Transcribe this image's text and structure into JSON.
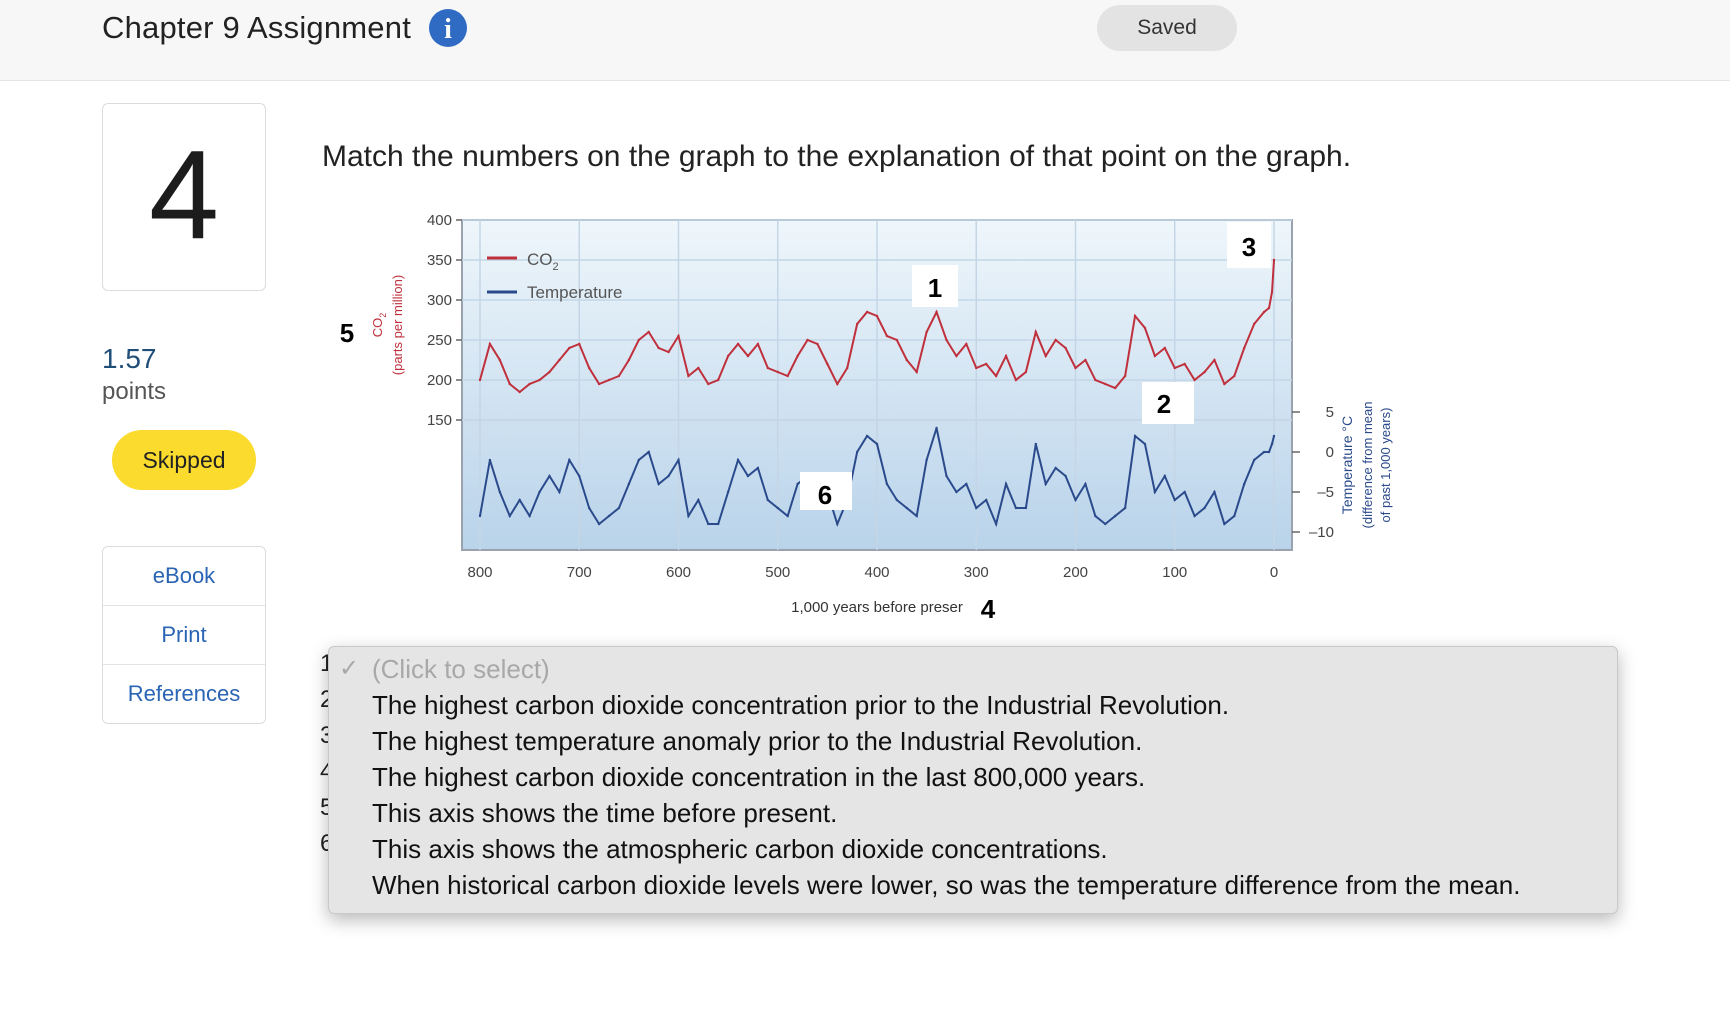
{
  "header": {
    "title": "Chapter 9 Assignment",
    "saved_label": "Saved",
    "info_glyph": "i"
  },
  "question": {
    "number": "4",
    "points_value": "1.57",
    "points_label": "points",
    "status": "Skipped",
    "prompt": "Match the numbers on the graph to the explanation of that point on the graph."
  },
  "sidebar": {
    "links": [
      "eBook",
      "Print",
      "References"
    ]
  },
  "chart_data": {
    "type": "line",
    "xlabel": "1,000 years before preser",
    "x_ticks": [
      "800",
      "700",
      "600",
      "500",
      "400",
      "300",
      "200",
      "100",
      "0"
    ],
    "xlim": [
      800,
      0
    ],
    "y_left_ticks": [
      "400",
      "350",
      "300",
      "250",
      "200",
      "150"
    ],
    "ylim_left": [
      150,
      400
    ],
    "y_left_label_1": "CO",
    "y_left_label_sub": "2",
    "y_left_label_2": "(parts per million)",
    "y_right_ticks": [
      "5",
      "0",
      "–5",
      "–10"
    ],
    "ylim_right": [
      -10,
      5
    ],
    "y_right_label_1": "Temperature °C",
    "y_right_label_2": "(difference from mean",
    "y_right_label_3": "of past 1,000 years)",
    "legend_placement": "top-left",
    "series": [
      {
        "name_main": "CO",
        "name_sub": "2",
        "color": "#c0303c",
        "x": [
          800,
          790,
          780,
          770,
          760,
          750,
          740,
          730,
          720,
          710,
          700,
          690,
          680,
          670,
          660,
          650,
          640,
          630,
          620,
          610,
          600,
          590,
          580,
          570,
          560,
          550,
          540,
          530,
          520,
          510,
          500,
          490,
          480,
          470,
          460,
          450,
          440,
          430,
          420,
          410,
          400,
          390,
          380,
          370,
          360,
          350,
          340,
          330,
          320,
          310,
          300,
          290,
          280,
          270,
          260,
          250,
          240,
          230,
          220,
          210,
          200,
          190,
          180,
          170,
          160,
          150,
          140,
          130,
          120,
          110,
          100,
          90,
          80,
          70,
          60,
          50,
          40,
          30,
          20,
          10,
          5,
          2,
          0
        ],
        "values": [
          200,
          245,
          225,
          195,
          185,
          195,
          200,
          210,
          225,
          240,
          245,
          215,
          195,
          200,
          205,
          225,
          250,
          260,
          240,
          235,
          255,
          205,
          215,
          195,
          200,
          230,
          245,
          230,
          245,
          215,
          210,
          205,
          230,
          250,
          245,
          220,
          195,
          215,
          270,
          285,
          280,
          255,
          250,
          225,
          210,
          260,
          285,
          250,
          230,
          245,
          215,
          220,
          205,
          230,
          200,
          210,
          260,
          230,
          250,
          240,
          215,
          225,
          200,
          195,
          190,
          205,
          280,
          265,
          230,
          240,
          215,
          220,
          200,
          210,
          225,
          195,
          205,
          240,
          270,
          285,
          290,
          310,
          350
        ]
      },
      {
        "name": "Temperature",
        "color": "#2a4a8c",
        "x": [
          800,
          790,
          780,
          770,
          760,
          750,
          740,
          730,
          720,
          710,
          700,
          690,
          680,
          670,
          660,
          650,
          640,
          630,
          620,
          610,
          600,
          590,
          580,
          570,
          560,
          550,
          540,
          530,
          520,
          510,
          500,
          490,
          480,
          470,
          460,
          450,
          440,
          430,
          420,
          410,
          400,
          390,
          380,
          370,
          360,
          350,
          340,
          330,
          320,
          310,
          300,
          290,
          280,
          270,
          260,
          250,
          240,
          230,
          220,
          210,
          200,
          190,
          180,
          170,
          160,
          150,
          140,
          130,
          120,
          110,
          100,
          90,
          80,
          70,
          60,
          50,
          40,
          30,
          20,
          10,
          5,
          2,
          0
        ],
        "values": [
          -8,
          -1,
          -5,
          -8,
          -6,
          -8,
          -5,
          -3,
          -5,
          -1,
          -3,
          -7,
          -9,
          -8,
          -7,
          -4,
          -1,
          0,
          -4,
          -3,
          -1,
          -8,
          -6,
          -9,
          -9,
          -5,
          -1,
          -3,
          -2,
          -6,
          -7,
          -8,
          -4,
          -3,
          -3,
          -5,
          -9,
          -6,
          0,
          2,
          1,
          -4,
          -6,
          -7,
          -8,
          -1,
          3,
          -3,
          -5,
          -4,
          -7,
          -6,
          -9,
          -4,
          -7,
          -7,
          1,
          -4,
          -2,
          -3,
          -6,
          -4,
          -8,
          -9,
          -8,
          -7,
          2,
          1,
          -5,
          -3,
          -6,
          -5,
          -8,
          -7,
          -5,
          -9,
          -8,
          -4,
          -1,
          0,
          0,
          1,
          2
        ]
      }
    ],
    "annotations": [
      {
        "label": "1",
        "target": "CO2 peak ~330 kyr"
      },
      {
        "label": "2",
        "target": "temperature peak ~125 kyr"
      },
      {
        "label": "3",
        "target": "present-day CO2"
      },
      {
        "label": "4",
        "target": "x axis"
      },
      {
        "label": "5",
        "target": "left y axis"
      },
      {
        "label": "6",
        "target": "low CO2 and temperature"
      }
    ]
  },
  "dropdown": {
    "placeholder": "(Click to select)",
    "options": [
      "The highest carbon dioxide concentration prior to the Industrial Revolution.",
      "The highest temperature anomaly prior to the Industrial Revolution.",
      "The highest carbon dioxide concentration in the last 800,000 years.",
      "This axis shows the time before present.",
      "This axis shows the atmospheric carbon dioxide concentrations.",
      "When historical carbon dioxide levels were lower, so was the temperature difference from the mean."
    ]
  },
  "behind_rows": [
    "1",
    "2",
    "3",
    "4",
    "5",
    "6"
  ],
  "colors": {
    "accent": "#2a64b4",
    "skipped": "#fadb2e",
    "co2": "#c0303c",
    "temperature": "#2a4a8c"
  },
  "icons": {
    "info": "info-icon",
    "checkmark": "checkmark-icon"
  }
}
